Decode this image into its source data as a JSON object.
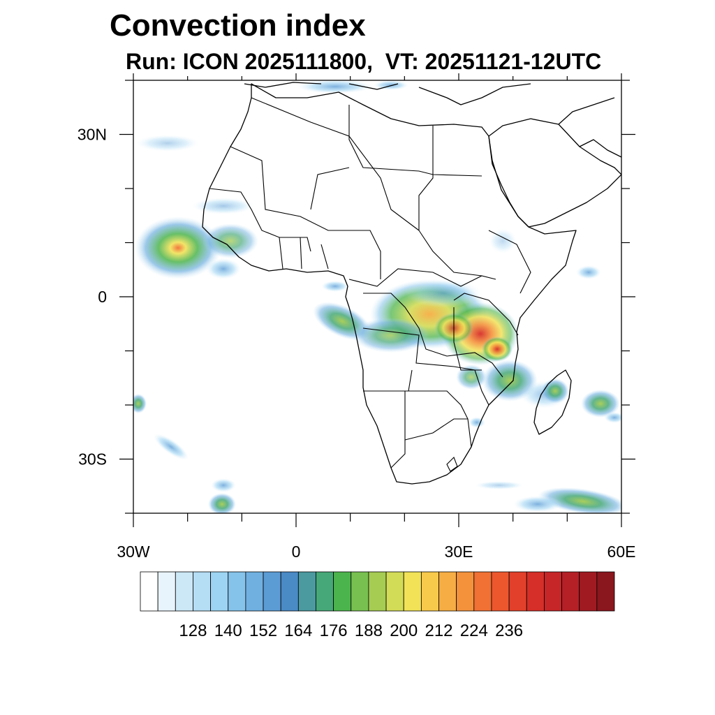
{
  "header": {
    "title": "Convection index",
    "subtitle": "Run: ICON 2025111800,  VT: 20251121-12UTC"
  },
  "map": {
    "projection": "cylindrical-equidistant",
    "lon_range": [
      -30,
      60
    ],
    "lat_range": [
      -40,
      40
    ],
    "lat_ticks": [
      {
        "value": 30,
        "label": "30N"
      },
      {
        "value": 0,
        "label": "0"
      },
      {
        "value": -30,
        "label": "30S"
      }
    ],
    "lon_ticks": [
      {
        "value": -30,
        "label": "30W"
      },
      {
        "value": 0,
        "label": "0"
      },
      {
        "value": 30,
        "label": "30E"
      },
      {
        "value": 60,
        "label": "60E"
      }
    ],
    "regions": [
      {
        "name": "central-africa-convection",
        "lon": 26,
        "lat": -4,
        "intensity": 0.78
      },
      {
        "name": "lake-victoria-tanzania-convection",
        "lon": 34,
        "lat": -7,
        "intensity": 0.95
      },
      {
        "name": "malawi-mozambique-convection",
        "lon": 36,
        "lat": -15,
        "intensity": 0.6
      },
      {
        "name": "west-atlantic-cyclone",
        "lon": -22,
        "lat": 7,
        "intensity": 0.7
      },
      {
        "name": "gulf-of-guinea-band",
        "lon": 7,
        "lat": -4,
        "intensity": 0.45
      },
      {
        "name": "madagascar-convection",
        "lon": 48,
        "lat": -19,
        "intensity": 0.5
      },
      {
        "name": "south-atlantic-band",
        "lon": -14,
        "lat": -38,
        "intensity": 0.45
      },
      {
        "name": "southern-ocean-band",
        "lon": 52,
        "lat": -38,
        "intensity": 0.45
      }
    ]
  },
  "colorbar": {
    "colors": [
      "#ffffff",
      "#e8f4fb",
      "#cce8f7",
      "#b5def5",
      "#9dd4f3",
      "#86c3ea",
      "#70b0e0",
      "#5c9cd5",
      "#4a8ac5",
      "#4a9aa0",
      "#46a878",
      "#4cb44c",
      "#78c050",
      "#a6cc52",
      "#d3dc56",
      "#f1e258",
      "#f8ca4c",
      "#f6ad44",
      "#f4923c",
      "#f17034",
      "#ec572e",
      "#e2402a",
      "#d62e28",
      "#c62628",
      "#b42026",
      "#a01a22",
      "#8a161e"
    ],
    "tick_labels": [
      "128",
      "140",
      "152",
      "164",
      "176",
      "188",
      "200",
      "212",
      "224",
      "236"
    ]
  }
}
